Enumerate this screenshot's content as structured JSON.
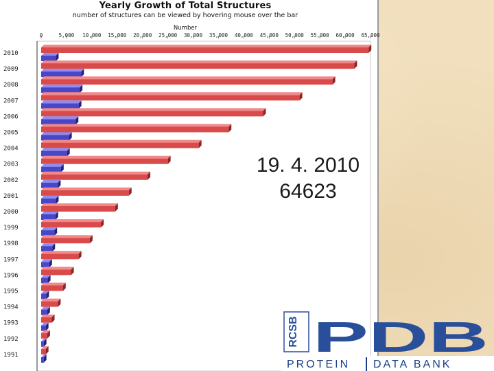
{
  "title": "Yearly Growth of Total Structures",
  "subtitle": "number of structures can be viewed by hovering mouse over the bar",
  "overlay": {
    "date": "19. 4. 2010",
    "count": "64623"
  },
  "logo": {
    "rcsb": "RCSB",
    "pdb": "PDB",
    "caption_left": "PROTEIN",
    "caption_right": "DATA BANK"
  },
  "colors": {
    "total": "#d94a4a",
    "yearly": "#4a46c8",
    "brand_blue": "#2a4f9a"
  },
  "chart_data": {
    "type": "bar",
    "orientation": "horizontal",
    "title": "Yearly Growth of Total Structures",
    "subtitle": "number of structures can be viewed by hovering mouse over the bar",
    "xlabel": "Number",
    "ylabel": "",
    "xlim": [
      0,
      65000
    ],
    "x_ticks": [
      "0",
      "5,000",
      "10,000",
      "15,000",
      "20,000",
      "25,000",
      "30,000",
      "35,000",
      "40,000",
      "45,000",
      "50,000",
      "55,000",
      "60,000",
      "65,000"
    ],
    "categories": [
      "2010",
      "2009",
      "2008",
      "2007",
      "2006",
      "2005",
      "2004",
      "2003",
      "2002",
      "2001",
      "2000",
      "1999",
      "1998",
      "1997",
      "1996",
      "1995",
      "1994",
      "1993",
      "1992",
      "1991"
    ],
    "series": [
      {
        "values": [
          64623,
          61800,
          57500,
          51000,
          43800,
          37000,
          31100,
          25000,
          21000,
          17300,
          14600,
          11800,
          9600,
          7400,
          5900,
          4300,
          3300,
          2100,
          1200,
          900
        ]
      },
      {
        "values": [
          2900,
          7900,
          7600,
          7400,
          6800,
          5500,
          5100,
          3900,
          3300,
          2900,
          2800,
          2600,
          2200,
          1600,
          1300,
          1000,
          1200,
          900,
          500,
          500
        ]
      }
    ],
    "grid": false,
    "legend": "none"
  }
}
